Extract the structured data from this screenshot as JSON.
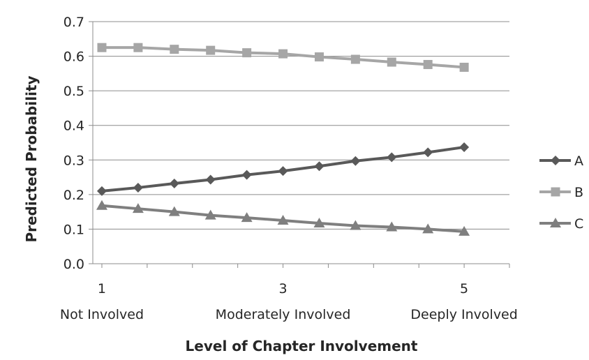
{
  "chart_data": {
    "type": "line",
    "title": "",
    "top_text": "",
    "xlabel": "Level of Chapter Involvement",
    "ylabel": "Predicted Probability",
    "ylim": [
      0,
      0.7
    ],
    "yticks": [
      "0.0",
      "0.1",
      "0.2",
      "0.3",
      "0.4",
      "0.5",
      "0.6",
      "0.7"
    ],
    "xlim": [
      0.9,
      5.5
    ],
    "xticks": [
      "1",
      "3",
      "5"
    ],
    "xtick_values": [
      1,
      3,
      5
    ],
    "category_labels": [
      "Not Involved",
      "Moderately Involved",
      "Deeply Involved"
    ],
    "grid": true,
    "legend_position": "right",
    "x": [
      1,
      1.4,
      1.8,
      2.2,
      2.6,
      3.0,
      3.4,
      3.8,
      4.2,
      4.6,
      5.0
    ],
    "series": [
      {
        "name": "A",
        "marker": "diamond",
        "color": "#595959",
        "values": [
          0.21,
          0.22,
          0.232,
          0.243,
          0.257,
          0.268,
          0.282,
          0.297,
          0.308,
          0.322,
          0.337
        ]
      },
      {
        "name": "B",
        "marker": "square",
        "color": "#a6a6a6",
        "values": [
          0.625,
          0.625,
          0.62,
          0.617,
          0.61,
          0.607,
          0.598,
          0.591,
          0.583,
          0.576,
          0.568
        ]
      },
      {
        "name": "C",
        "marker": "triangle",
        "color": "#7f7f7f",
        "values": [
          0.168,
          0.159,
          0.15,
          0.14,
          0.133,
          0.125,
          0.117,
          0.11,
          0.106,
          0.1,
          0.093
        ]
      }
    ]
  }
}
